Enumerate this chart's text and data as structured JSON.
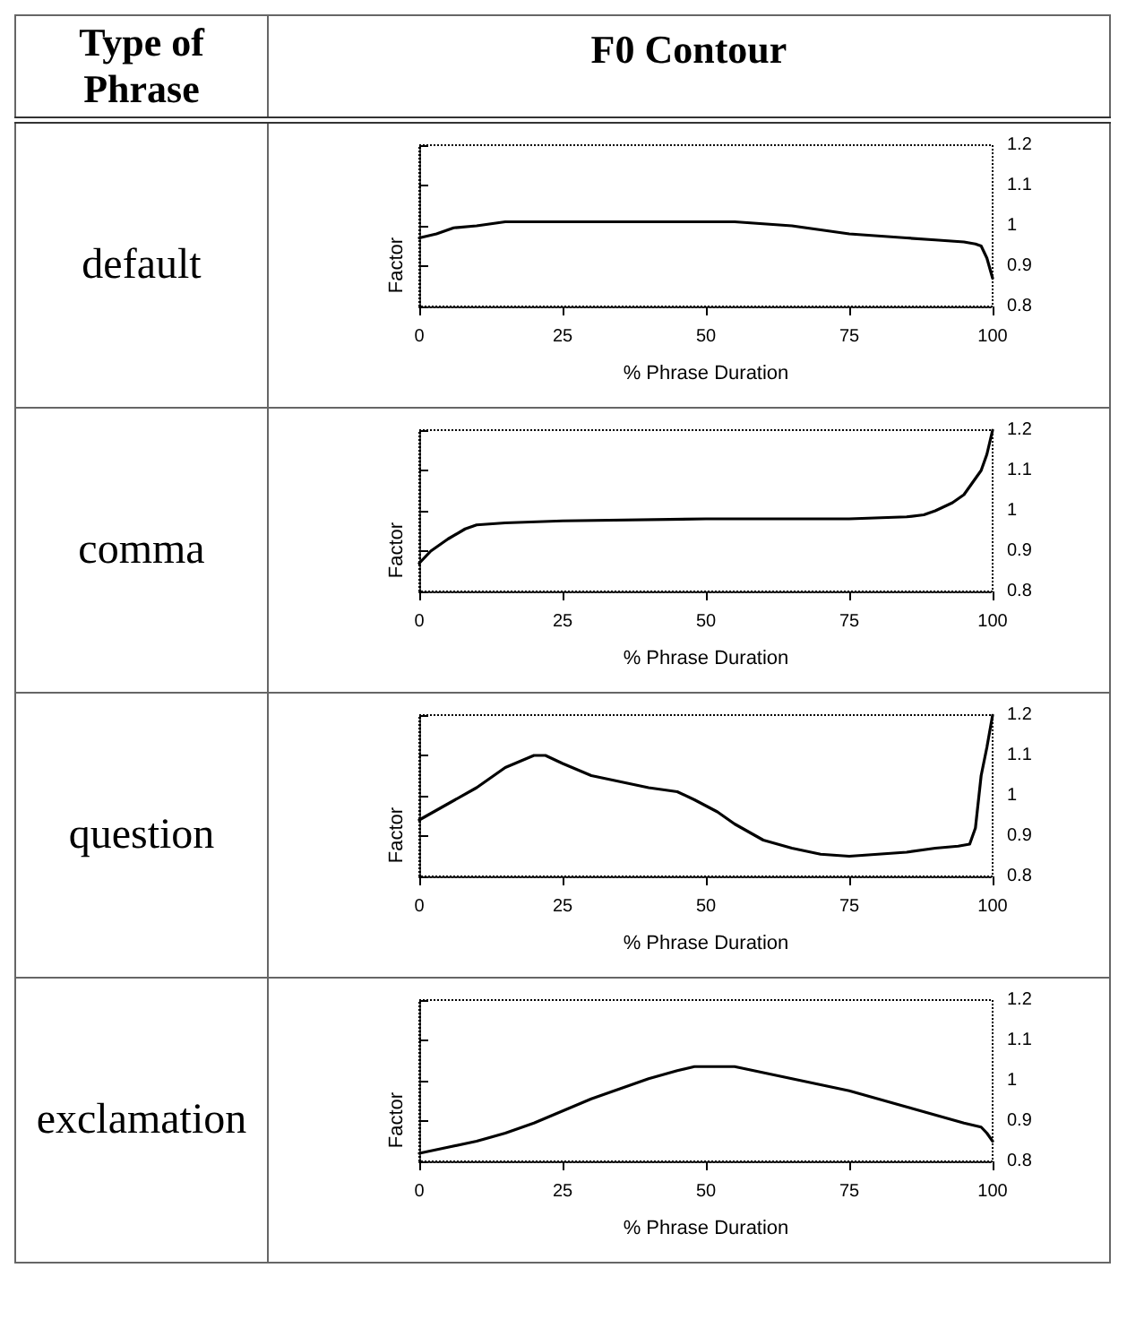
{
  "chart_data": [
    {
      "type": "line",
      "title": "default",
      "annotations": [
        "Type of Phrase",
        "F0 Contour"
      ],
      "xlabel": "% Phrase Duration",
      "ylabel": "Factor",
      "xlim": [
        0,
        100
      ],
      "xticks": [
        0,
        25,
        50,
        75,
        100
      ],
      "ylim": [
        0.8,
        1.2
      ],
      "yticks": [
        0.8,
        0.9,
        1,
        1.1,
        1.2
      ],
      "grid": false,
      "marker": "none",
      "line_style": "solid",
      "x": [
        0,
        3,
        6,
        10,
        15,
        25,
        40,
        55,
        60,
        65,
        70,
        75,
        80,
        85,
        90,
        95,
        97,
        98,
        99,
        100
      ],
      "series": [
        {
          "color": "#000000",
          "values": [
            0.97,
            0.98,
            0.995,
            1.0,
            1.01,
            1.01,
            1.01,
            1.01,
            1.005,
            1.0,
            0.99,
            0.98,
            0.975,
            0.97,
            0.965,
            0.96,
            0.955,
            0.95,
            0.92,
            0.87
          ]
        }
      ]
    },
    {
      "type": "line",
      "title": "comma",
      "xlabel": "% Phrase Duration",
      "ylabel": "Factor",
      "xlim": [
        0,
        100
      ],
      "xticks": [
        0,
        25,
        50,
        75,
        100
      ],
      "ylim": [
        0.8,
        1.2
      ],
      "yticks": [
        0.8,
        0.9,
        1,
        1.1,
        1.2
      ],
      "grid": false,
      "marker": "none",
      "line_style": "solid",
      "x": [
        0,
        2,
        5,
        8,
        10,
        15,
        25,
        50,
        75,
        85,
        88,
        90,
        93,
        95,
        97,
        98,
        99,
        100
      ],
      "series": [
        {
          "color": "#000000",
          "values": [
            0.87,
            0.9,
            0.93,
            0.955,
            0.965,
            0.97,
            0.975,
            0.98,
            0.98,
            0.985,
            0.99,
            1.0,
            1.02,
            1.04,
            1.08,
            1.1,
            1.14,
            1.2
          ]
        }
      ]
    },
    {
      "type": "line",
      "title": "question",
      "xlabel": "% Phrase Duration",
      "ylabel": "Factor",
      "xlim": [
        0,
        100
      ],
      "xticks": [
        0,
        25,
        50,
        75,
        100
      ],
      "ylim": [
        0.8,
        1.2
      ],
      "yticks": [
        0.8,
        0.9,
        1,
        1.1,
        1.2
      ],
      "grid": false,
      "marker": "none",
      "line_style": "solid",
      "x": [
        0,
        5,
        10,
        15,
        20,
        22,
        25,
        30,
        40,
        45,
        48,
        52,
        55,
        60,
        65,
        70,
        75,
        80,
        85,
        90,
        94,
        96,
        97,
        98,
        99,
        100
      ],
      "series": [
        {
          "color": "#000000",
          "values": [
            0.94,
            0.98,
            1.02,
            1.07,
            1.1,
            1.1,
            1.08,
            1.05,
            1.02,
            1.01,
            0.99,
            0.96,
            0.93,
            0.89,
            0.87,
            0.855,
            0.85,
            0.855,
            0.86,
            0.87,
            0.875,
            0.88,
            0.92,
            1.05,
            1.12,
            1.2
          ]
        }
      ]
    },
    {
      "type": "line",
      "title": "exclamation",
      "xlabel": "% Phrase Duration",
      "ylabel": "Factor",
      "xlim": [
        0,
        100
      ],
      "xticks": [
        0,
        25,
        50,
        75,
        100
      ],
      "ylim": [
        0.8,
        1.2
      ],
      "yticks": [
        0.8,
        0.9,
        1,
        1.1,
        1.2
      ],
      "grid": false,
      "marker": "none",
      "line_style": "solid",
      "x": [
        0,
        5,
        10,
        15,
        20,
        25,
        30,
        35,
        40,
        45,
        48,
        55,
        60,
        65,
        70,
        75,
        80,
        85,
        90,
        95,
        98,
        99,
        100
      ],
      "series": [
        {
          "color": "#000000",
          "values": [
            0.82,
            0.835,
            0.85,
            0.87,
            0.895,
            0.925,
            0.955,
            0.98,
            1.005,
            1.025,
            1.035,
            1.035,
            1.02,
            1.005,
            0.99,
            0.975,
            0.955,
            0.935,
            0.915,
            0.895,
            0.885,
            0.87,
            0.85
          ]
        }
      ]
    }
  ]
}
